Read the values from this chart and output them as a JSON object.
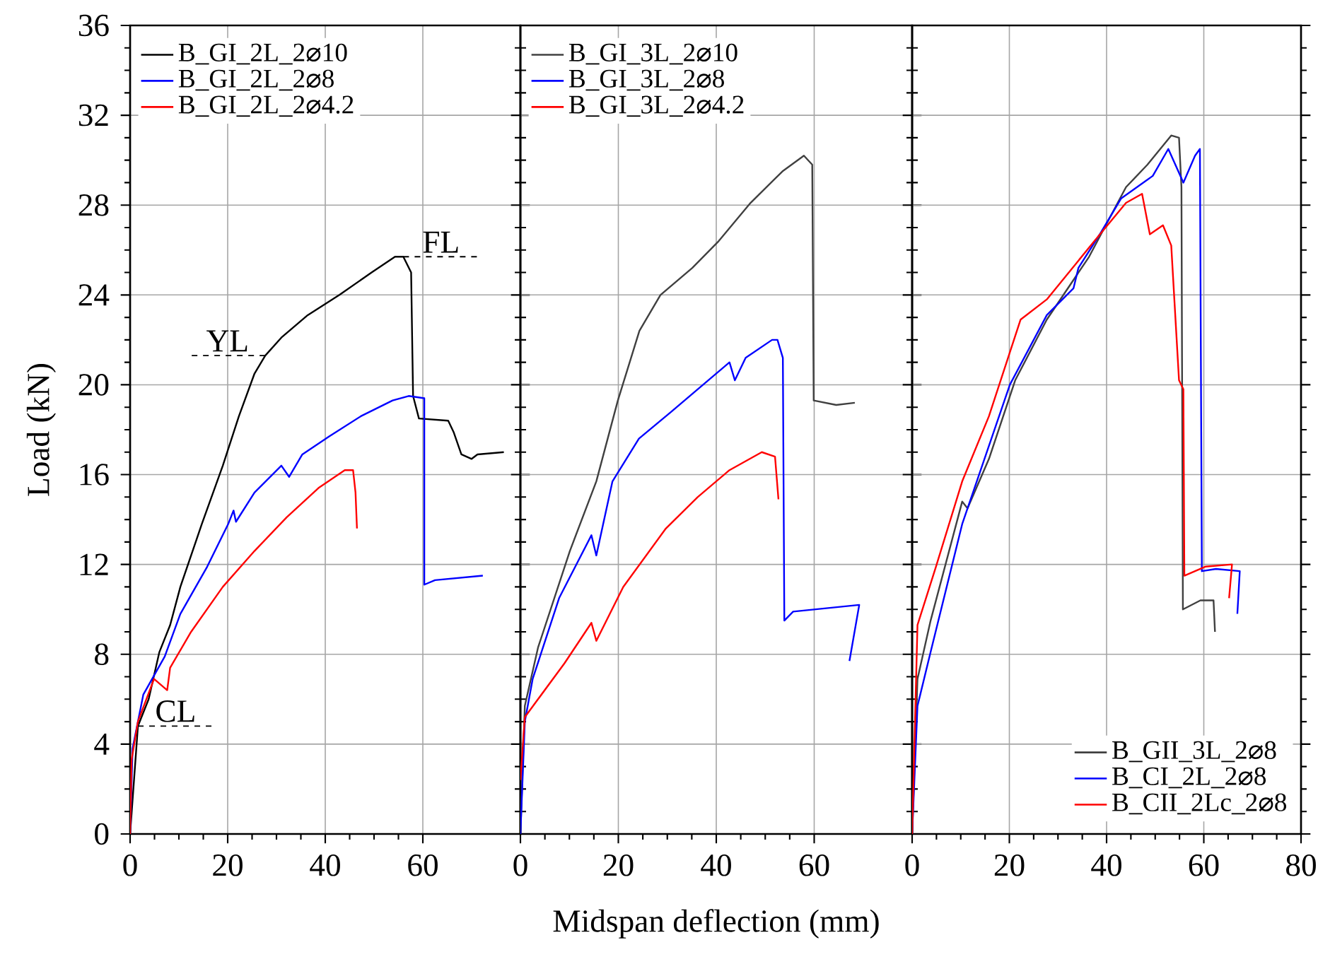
{
  "chart_data": [
    {
      "type": "line",
      "ylabel": "Load (kN)",
      "xlim": [
        0,
        80
      ],
      "ylim": [
        0,
        36
      ],
      "xticks": [
        0,
        20,
        40,
        60
      ],
      "yticks": [
        0,
        4,
        8,
        12,
        16,
        20,
        24,
        28,
        32,
        36
      ],
      "grid": true,
      "legend": "top left",
      "annotations": [
        {
          "text": "CL",
          "x": 1.6,
          "y": 4.8
        },
        {
          "text": "YL",
          "x": 27.7,
          "y": 21.3
        },
        {
          "text": "FL",
          "x": 56,
          "y": 25.7
        }
      ],
      "series": [
        {
          "name": "B_GI_2L_2⌀10",
          "color": "#000000",
          "x": [
            0,
            1.6,
            3.8,
            6,
            8.2,
            10.3,
            14.7,
            19,
            22.3,
            25.5,
            27.7,
            31,
            36.4,
            42.9,
            49.5,
            54.3,
            56,
            57.6,
            58,
            59.2,
            65.2,
            66.3,
            67.9,
            70,
            71.2,
            76.6
          ],
          "values": [
            0,
            4.8,
            6,
            8.1,
            9.3,
            11,
            13.8,
            16.4,
            18.6,
            20.5,
            21.3,
            22.1,
            23.1,
            24,
            25,
            25.7,
            25.7,
            25,
            19.5,
            18.5,
            18.4,
            17.9,
            16.9,
            16.7,
            16.9,
            17
          ]
        },
        {
          "name": "B_GI_2L_2⌀8",
          "color": "#0000ff",
          "x": [
            0,
            0.5,
            2.7,
            7.1,
            10.3,
            15.8,
            20.1,
            21.2,
            21.7,
            25.5,
            31,
            32.6,
            35.3,
            40.8,
            47.3,
            53.8,
            57.1,
            60.3,
            60.3,
            62.5,
            72.3
          ],
          "values": [
            0,
            3.8,
            6.2,
            7.9,
            9.8,
            11.9,
            13.8,
            14.4,
            13.9,
            15.2,
            16.4,
            15.9,
            16.9,
            17.7,
            18.6,
            19.3,
            19.5,
            19.4,
            11.1,
            11.3,
            11.5
          ]
        },
        {
          "name": "B_GI_2L_2⌀4.2",
          "color": "#ff0000",
          "x": [
            0,
            0.3,
            1.6,
            4.9,
            7.6,
            8.2,
            12.5,
            19,
            25.5,
            32.1,
            38.6,
            44,
            45.7,
            46.2,
            46.5
          ],
          "values": [
            0,
            3.3,
            5,
            6.9,
            6.4,
            7.4,
            9,
            11,
            12.6,
            14.1,
            15.4,
            16.2,
            16.2,
            15.2,
            13.6
          ]
        }
      ]
    },
    {
      "type": "line",
      "xlabel": "Midspan deflection (mm)",
      "xlim": [
        0,
        80
      ],
      "ylim": [
        0,
        36
      ],
      "xticks": [
        0,
        20,
        40,
        60
      ],
      "yticks": [
        0,
        4,
        8,
        12,
        16,
        20,
        24,
        28,
        32,
        36
      ],
      "grid": true,
      "legend": "top left",
      "tick_labels": "x",
      "series": [
        {
          "name": "B_GI_3L_2⌀10",
          "color": "#404040",
          "x": [
            0,
            0.9,
            3.6,
            10.1,
            15.5,
            19.9,
            24.3,
            28.6,
            35.1,
            40.5,
            47,
            53.5,
            57.9,
            59.6,
            59.9,
            64.5,
            68.3
          ],
          "values": [
            0,
            5.7,
            8.3,
            12.6,
            15.7,
            19.3,
            22.4,
            24,
            25.2,
            26.4,
            28.1,
            29.5,
            30.2,
            29.8,
            19.3,
            19.1,
            19.2
          ]
        },
        {
          "name": "B_GI_3L_2⌀8",
          "color": "#0000ff",
          "x": [
            0,
            0.9,
            2.5,
            7.9,
            14.5,
            15.5,
            18.8,
            24.2,
            30.8,
            37.3,
            42.7,
            43.8,
            46,
            51.4,
            52.5,
            53.6,
            53.9,
            55.7,
            69.2,
            67.2
          ],
          "values": [
            0,
            5,
            6.9,
            10.5,
            13.3,
            12.4,
            15.7,
            17.6,
            18.8,
            20,
            21,
            20.2,
            21.2,
            22,
            22,
            21.2,
            9.5,
            9.9,
            10.2,
            7.7
          ]
        },
        {
          "name": "B_GI_3L_2⌀4.2",
          "color": "#ff0000",
          "x": [
            0,
            0.9,
            3.6,
            9,
            14.5,
            15.5,
            21,
            29.7,
            36.2,
            42.7,
            49.3,
            52,
            52.7
          ],
          "values": [
            2.4,
            5.2,
            6,
            7.6,
            9.4,
            8.6,
            11,
            13.6,
            15,
            16.2,
            17,
            16.8,
            14.9
          ]
        }
      ]
    },
    {
      "type": "line",
      "xlim": [
        0,
        80
      ],
      "ylim": [
        0,
        36
      ],
      "xticks": [
        0,
        20,
        40,
        60,
        80
      ],
      "yticks": [
        0,
        4,
        8,
        12,
        16,
        20,
        24,
        28,
        32,
        36
      ],
      "grid": true,
      "legend": "bottom right",
      "tick_labels": "x",
      "series": [
        {
          "name": "B_GII_3L_2⌀8",
          "color": "#404040",
          "x": [
            0,
            1.1,
            3.8,
            10.3,
            11.4,
            15.8,
            21.2,
            27.7,
            36.4,
            44,
            48.4,
            53.3,
            54.9,
            55.4,
            55.7,
            59.3,
            62,
            62.3
          ],
          "values": [
            0,
            6.9,
            9.5,
            14.8,
            14.5,
            16.7,
            20.2,
            22.9,
            25.7,
            28.8,
            29.8,
            31.1,
            31,
            28.8,
            10,
            10.4,
            10.4,
            9
          ]
        },
        {
          "name": "B_CI_2L_2⌀8",
          "color": "#0000ff",
          "x": [
            0,
            1.1,
            3.8,
            10.3,
            20.1,
            27.7,
            33.2,
            34.2,
            38.6,
            43,
            49.5,
            52.7,
            55.8,
            58.2,
            59.2,
            59.6,
            62.5,
            67.4,
            66.9
          ],
          "values": [
            0,
            5.7,
            8.1,
            13.8,
            20,
            23.1,
            24.3,
            25.2,
            26.7,
            28.3,
            29.3,
            30.5,
            29,
            30.2,
            30.5,
            11.7,
            11.8,
            11.7,
            9.8
          ]
        },
        {
          "name": "B_CII_2Lc_2⌀8",
          "color": "#ff0000",
          "x": [
            0,
            1.1,
            4.9,
            10.3,
            15.8,
            22.3,
            27.7,
            37.5,
            44,
            47.3,
            48.9,
            51.6,
            53.3,
            54.9,
            55.8,
            56,
            60.3,
            65.8,
            65.2
          ],
          "values": [
            0,
            9.3,
            11.9,
            15.7,
            18.6,
            22.9,
            23.8,
            26.4,
            28.1,
            28.5,
            26.7,
            27.1,
            26.2,
            20.2,
            19.8,
            11.5,
            11.9,
            12,
            10.5
          ]
        }
      ]
    }
  ]
}
